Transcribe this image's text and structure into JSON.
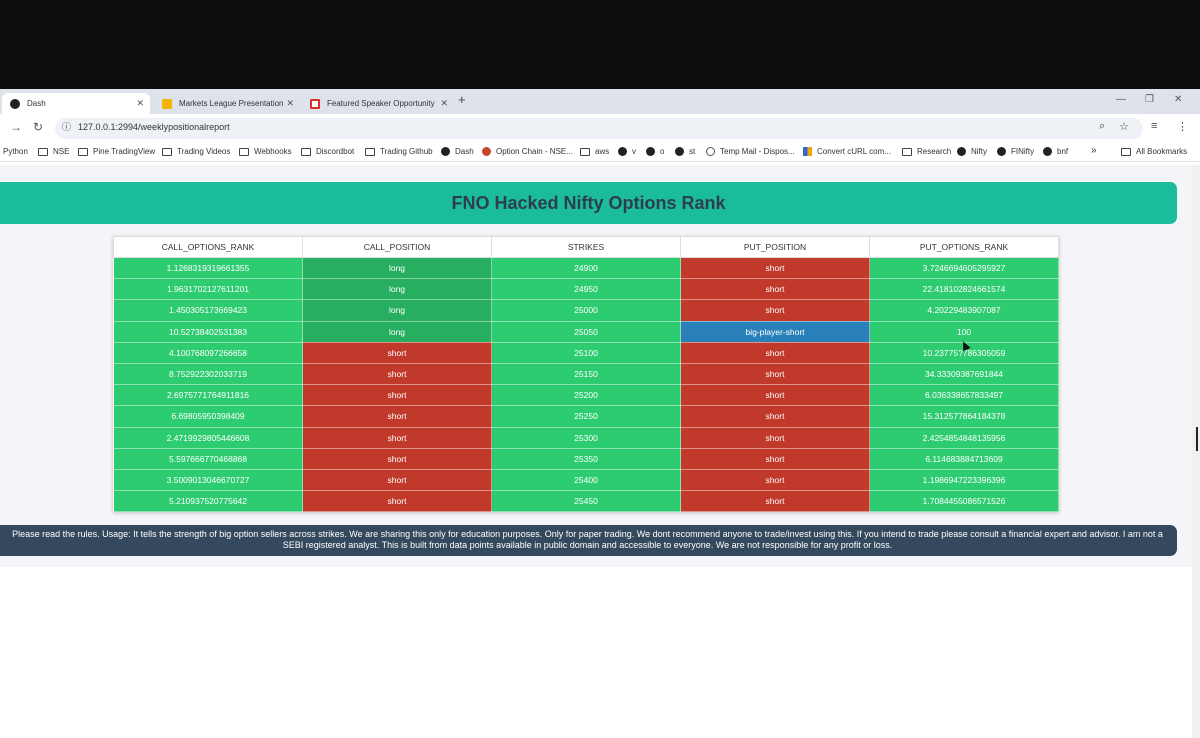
{
  "browser": {
    "tabs": [
      {
        "title": "Dash",
        "active": true
      },
      {
        "title": "Markets League Presentation -",
        "active": false
      },
      {
        "title": "Featured Speaker Opportunity",
        "active": false
      }
    ],
    "new_tab": "+",
    "url": "127.0.0.1:2994/weeklypositionalreport",
    "bookmarks": [
      "Python",
      "NSE",
      "Pine TradingView",
      "Trading Videos",
      "Webhooks",
      "Discordbot",
      "Trading Github",
      "Dash",
      "Option Chain - NSE...",
      "aws",
      "v",
      "o",
      "st",
      "Temp Mail - Dispos...",
      "Convert cURL com...",
      "Research",
      "Nifty",
      "FINifty",
      "bnf"
    ],
    "more_bookmarks": "»",
    "all_bookmarks": "All Bookmarks"
  },
  "page": {
    "title": "FNO Hacked Nifty Options Rank",
    "disclaimer": "Please read the rules. Usage: It tells the strength of big option sellers across strikes. We are sharing this only for education purposes. Only for paper trading. We dont recommend anyone to trade/invest using this. If you intend to trade please consult a financial expert and advisor. I am not a SEBI registered analyst. This is built from data points available in public domain and accessible to everyone. We are not responsible for any profit or loss."
  },
  "table": {
    "columns": [
      "CALL_OPTIONS_RANK",
      "CALL_POSITION",
      "STRIKES",
      "PUT_POSITION",
      "PUT_OPTIONS_RANK"
    ],
    "rows": [
      [
        "1.1268319319661355",
        "long",
        "24900",
        "short",
        "3.7246694605295927"
      ],
      [
        "1.9631702127611201",
        "long",
        "24950",
        "short",
        "22.418102824661574"
      ],
      [
        "1.450305173669423",
        "long",
        "25000",
        "short",
        "4.20229483907087"
      ],
      [
        "10.52738402531383",
        "long",
        "25050",
        "big-player-short",
        "100"
      ],
      [
        "4.100768097266658",
        "short",
        "25100",
        "short",
        "10.23775?786305059"
      ],
      [
        "8.752922302033719",
        "short",
        "25150",
        "short",
        "34.33309387691844"
      ],
      [
        "2.6975771764911816",
        "short",
        "25200",
        "short",
        "6.036338657833497"
      ],
      [
        "6.69805950398409",
        "short",
        "25250",
        "short",
        "15.312577864184378"
      ],
      [
        "2.4719929805446608",
        "short",
        "25300",
        "short",
        "2.4254854848135956"
      ],
      [
        "5.597666770468868",
        "short",
        "25350",
        "short",
        "6.114683884713609"
      ],
      [
        "3.5009013046670727",
        "short",
        "25400",
        "short",
        "1.1986947223396396"
      ],
      [
        "5.210937520775642",
        "short",
        "25450",
        "short",
        "1.7084455086571526"
      ]
    ]
  },
  "colors": {
    "rank_cell": "#2ecc71",
    "long_cell": "#27ae60",
    "short_cell": "#c0392b",
    "big_player_cell": "#2980b9",
    "banner": "#1abc9c",
    "disclaimer_bg": "#34495e"
  }
}
